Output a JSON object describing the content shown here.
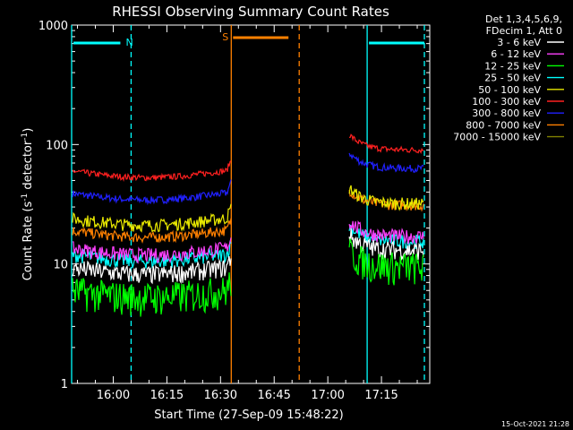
{
  "chart_data": {
    "type": "line",
    "title": "RHESSI Observing Summary Count Rates",
    "xlabel": "Start Time (27-Sep-09 15:48:22)",
    "ylabel_main": "Count Rate (s",
    "ylabel_sup1": "-1",
    "ylabel_mid": " detector",
    "ylabel_sup2": "-1",
    "ylabel_end": ")",
    "y_scale": "log",
    "ylim": [
      1,
      1000
    ],
    "xlim": [
      "15:48:22",
      "17:28:30"
    ],
    "x_ticks": [
      "16:00",
      "16:15",
      "16:30",
      "16:45",
      "17:00",
      "17:15"
    ],
    "y_ticks": [
      "1",
      "10",
      "100",
      "1000"
    ],
    "legend_header": [
      "Det 1,3,4,5,6,9,",
      "FDecim 1, Att 0"
    ],
    "legend_placement": "right",
    "series": [
      {
        "name": "3 - 6 keV",
        "color": "#ffffff",
        "before": 9.3,
        "after": 13.0
      },
      {
        "name": "6 - 12 keV",
        "color": "#ff40ff",
        "before": 13.5,
        "after": 17.0
      },
      {
        "name": "12 - 25 keV",
        "color": "#00ff00",
        "before": 6.0,
        "after": 9.5
      },
      {
        "name": "25 - 50 keV",
        "color": "#00ffff",
        "before": 12.0,
        "after": 15.5
      },
      {
        "name": "50 - 100 keV",
        "color": "#e8e800",
        "before": 24.0,
        "after": 32.0
      },
      {
        "name": "100 - 300 keV",
        "color": "#ff2020",
        "before": 60.0,
        "after": 90.0
      },
      {
        "name": "300 - 800 keV",
        "color": "#2020ff",
        "before": 39.0,
        "after": 63.0
      },
      {
        "name": "800 - 7000 keV",
        "color": "#ff8000",
        "before": 19.0,
        "after": 31.0
      },
      {
        "name": "7000 - 15000 keV",
        "color": "#808000",
        "before": null,
        "after": null
      }
    ],
    "data_gap": [
      "16:33",
      "17:06"
    ],
    "markers": [
      {
        "label": "N",
        "color": "#00ffff",
        "start": "15:48:22",
        "end": "16:05"
      },
      {
        "label": "S",
        "color": "#ff8000",
        "start": "16:33",
        "end": "16:52"
      },
      {
        "label": "",
        "color": "#00ffff",
        "start": "17:11",
        "end": "17:27"
      }
    ],
    "footer_date": "15-Oct-2021 21:28"
  }
}
